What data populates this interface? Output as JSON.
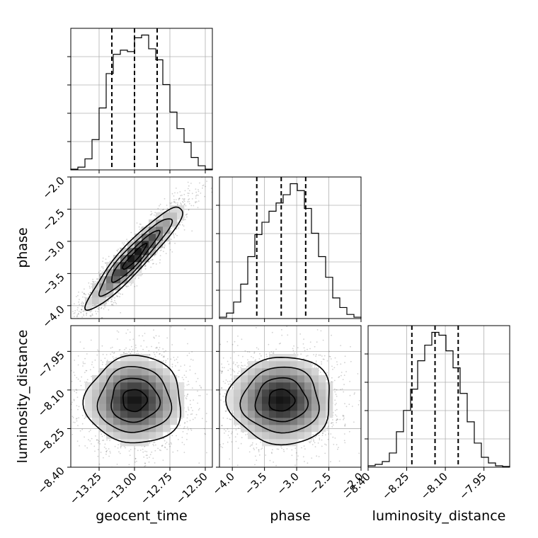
{
  "chart_data": {
    "type": "corner",
    "parameters": [
      "geocent_time",
      "phase",
      "luminosity_distance"
    ],
    "axis_labels": [
      "geocent_time",
      "phase",
      "luminosity_distance"
    ],
    "ranges": [
      [
        -13.45,
        -12.45
      ],
      [
        -4.2,
        -2.0
      ],
      [
        -8.4,
        -7.85
      ]
    ],
    "ticks": [
      {
        "values": [
          -13.25,
          -13.0,
          -12.75,
          -12.5
        ],
        "labels": [
          "−13.25",
          "−13.00",
          "−12.75",
          "−12.50"
        ]
      },
      {
        "values": [
          -4.0,
          -3.5,
          -3.0,
          -2.5,
          -2.0
        ],
        "labels": [
          "−4.0",
          "−3.5",
          "−3.0",
          "−2.5",
          "−2.0"
        ]
      },
      {
        "values": [
          -8.4,
          -8.25,
          -8.1,
          -7.95
        ],
        "labels": [
          "−8.40",
          "−8.25",
          "−8.10",
          "−7.95"
        ]
      }
    ],
    "quantiles": [
      [
        -13.16,
        -13.0,
        -12.84
      ],
      [
        -3.62,
        -3.24,
        -2.86
      ],
      [
        -8.23,
        -8.14,
        -8.05
      ]
    ],
    "histograms": [
      {
        "bins": [
          -13.45,
          -13.4,
          -13.35,
          -13.3,
          -13.25,
          -13.2,
          -13.15,
          -13.1,
          -13.05,
          -13.0,
          -12.95,
          -12.9,
          -12.85,
          -12.8,
          -12.75,
          -12.7,
          -12.65,
          -12.6,
          -12.55,
          -12.5,
          -12.45
        ],
        "counts": [
          0.5,
          2,
          8,
          22,
          45,
          70,
          84,
          87,
          86,
          96,
          98,
          88,
          80,
          62,
          42,
          30,
          20,
          9,
          3,
          0.5
        ]
      },
      {
        "bins": [
          -4.2,
          -4.09,
          -3.98,
          -3.87,
          -3.76,
          -3.65,
          -3.54,
          -3.43,
          -3.32,
          -3.21,
          -3.1,
          -2.99,
          -2.88,
          -2.77,
          -2.66,
          -2.55,
          -2.44,
          -2.33,
          -2.22,
          -2.11,
          -2.0
        ],
        "counts": [
          1,
          4,
          12,
          25,
          45,
          61,
          70,
          78,
          84,
          90,
          98,
          93,
          80,
          62,
          45,
          30,
          15,
          8,
          3,
          1
        ]
      },
      {
        "bins": [
          -8.4,
          -8.3725,
          -8.345,
          -8.3175,
          -8.29,
          -8.2625,
          -8.235,
          -8.2075,
          -8.18,
          -8.1525,
          -8.125,
          -8.0975,
          -8.07,
          -8.0425,
          -8.015,
          -7.9875,
          -7.96,
          -7.9325,
          -7.905,
          -7.8775,
          -7.85
        ],
        "counts": [
          1,
          2,
          4,
          10,
          25,
          40,
          55,
          75,
          86,
          95,
          93,
          82,
          70,
          52,
          32,
          17,
          7,
          3,
          1,
          0.5
        ]
      }
    ],
    "pairs": [
      {
        "x": 0,
        "y": 1,
        "center": [
          -13.0,
          -3.24
        ],
        "sigma": [
          0.17,
          0.4
        ],
        "rho": 0.93
      },
      {
        "x": 0,
        "y": 2,
        "center": [
          -13.0,
          -8.14
        ],
        "sigma": [
          0.17,
          0.085
        ],
        "rho": 0.0
      },
      {
        "x": 1,
        "y": 2,
        "center": [
          -3.24,
          -8.14
        ],
        "sigma": [
          0.4,
          0.085
        ],
        "rho": 0.0
      }
    ],
    "contour_levels": [
      0.5,
      1.0,
      1.5,
      2.0
    ],
    "colors": {
      "line": "#000000",
      "grid": "#b0b0b0",
      "points": "#000000",
      "density_high": "#000000",
      "density_low": "#ffffff"
    },
    "grid": true
  }
}
